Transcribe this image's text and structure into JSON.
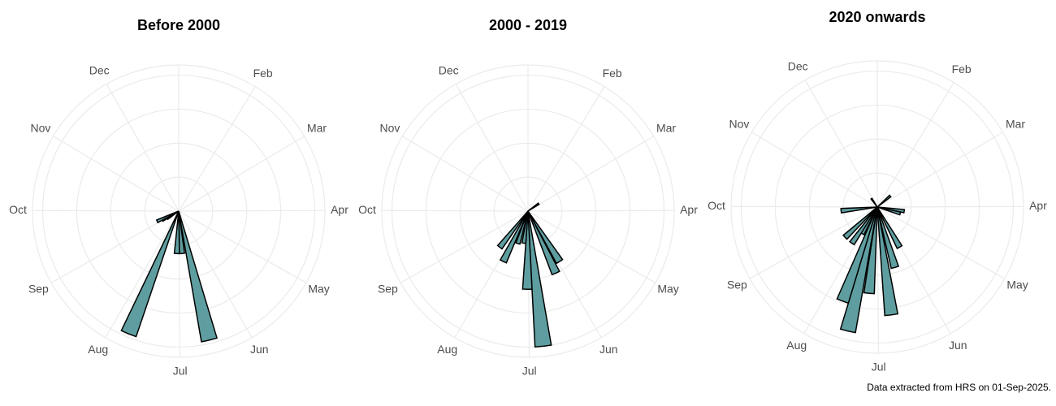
{
  "caption": "Data extracted from HRS on 01-Sep-2025.",
  "chart_data": [
    {
      "type": "polar-bar",
      "title": "Before 2000",
      "color": "#5f9ea0",
      "x": [
        169,
        178,
        185,
        205,
        240,
        244,
        248
      ],
      "values": [
        3.9,
        1.25,
        1.25,
        3.9,
        0.4,
        0.55,
        0.7
      ],
      "xlim": [
        0,
        365
      ],
      "xticks": [
        {
          "value": 32,
          "label": "Feb"
        },
        {
          "value": 60,
          "label": "Mar"
        },
        {
          "value": 91,
          "label": "Apr"
        },
        {
          "value": 121,
          "label": "May"
        },
        {
          "value": 152,
          "label": "Jun"
        },
        {
          "value": 182,
          "label": "Jul"
        },
        {
          "value": 213,
          "label": "Aug"
        },
        {
          "value": 244,
          "label": "Sep"
        },
        {
          "value": 274,
          "label": "Oct"
        },
        {
          "value": 305,
          "label": "Nov"
        },
        {
          "value": 335,
          "label": "Dec"
        }
      ],
      "ylim": [
        0,
        4.3
      ],
      "yticks": [
        1,
        2,
        3,
        4
      ],
      "grid": true
    },
    {
      "type": "polar-bar",
      "title": "2000 - 2019",
      "color": "#5f9ea0",
      "x": [
        56,
        150,
        158,
        176,
        183,
        190,
        200,
        209,
        221
      ],
      "values": [
        0.38,
        1.75,
        2.0,
        4.0,
        2.3,
        0.95,
        1.0,
        1.65,
        1.35
      ],
      "xlim": [
        0,
        365
      ],
      "xticks": [
        {
          "value": 32,
          "label": "Feb"
        },
        {
          "value": 60,
          "label": "Mar"
        },
        {
          "value": 91,
          "label": "Apr"
        },
        {
          "value": 121,
          "label": "May"
        },
        {
          "value": 152,
          "label": "Jun"
        },
        {
          "value": 182,
          "label": "Jul"
        },
        {
          "value": 213,
          "label": "Aug"
        },
        {
          "value": 244,
          "label": "Sep"
        },
        {
          "value": 274,
          "label": "Oct"
        },
        {
          "value": 305,
          "label": "Nov"
        },
        {
          "value": 335,
          "label": "Dec"
        }
      ],
      "ylim": [
        0,
        4.3
      ],
      "yticks": [
        1,
        2,
        3,
        4
      ],
      "grid": true
    },
    {
      "type": "polar-bar",
      "title": "2020 onwards",
      "color": "#5f9ea0",
      "x": [
        50,
        100,
        107,
        153,
        166,
        175,
        188,
        196,
        203,
        212,
        218,
        230,
        268,
        330
      ],
      "values": [
        0.5,
        0.8,
        0.7,
        1.35,
        1.85,
        3.2,
        2.55,
        3.75,
        2.95,
        0.9,
        1.3,
        1.3,
        1.07,
        0.3
      ],
      "xlim": [
        0,
        365
      ],
      "xticks": [
        {
          "value": 32,
          "label": "Feb"
        },
        {
          "value": 60,
          "label": "Mar"
        },
        {
          "value": 91,
          "label": "Apr"
        },
        {
          "value": 121,
          "label": "May"
        },
        {
          "value": 152,
          "label": "Jun"
        },
        {
          "value": 182,
          "label": "Jul"
        },
        {
          "value": 213,
          "label": "Aug"
        },
        {
          "value": 244,
          "label": "Sep"
        },
        {
          "value": 274,
          "label": "Oct"
        },
        {
          "value": 305,
          "label": "Nov"
        },
        {
          "value": 335,
          "label": "Dec"
        }
      ],
      "ylim": [
        0,
        4.3
      ],
      "yticks": [
        1,
        2,
        3,
        4
      ],
      "grid": true
    }
  ]
}
